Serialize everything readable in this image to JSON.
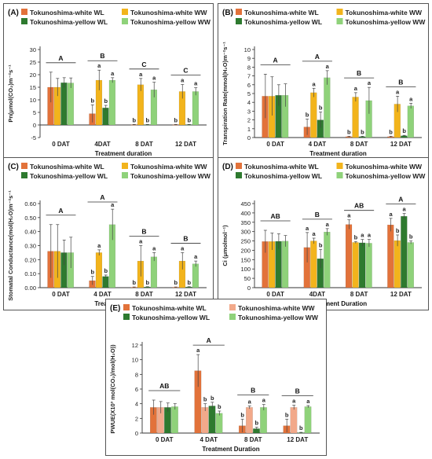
{
  "colors": {
    "white_wl": "#e2723a",
    "white_ww": "#f2b41c",
    "yellow_wl": "#2e7a2f",
    "yellow_ww": "#8fd27a",
    "white_ww_e": "#f2a98a",
    "axis": "#333333"
  },
  "chart_data": [
    {
      "panel_label": "(A)",
      "type": "bar",
      "legend": [
        "Tokunoshima-white WL",
        "Tokunoshima-white WW",
        "Tokunoshima-yellow  WL",
        "Tokunoshima-yellow  WW"
      ],
      "categories": [
        "0 DAT",
        "4DAT",
        "8 DAT",
        "12 DAT"
      ],
      "xlabel": "Treatment duration",
      "ylabel": "Pn(μmol(CO₂)m⁻²s⁻¹",
      "ylim": [
        -5,
        30
      ],
      "yticks": [
        "-5",
        "0",
        "5",
        "10",
        "15",
        "20",
        "25",
        "30"
      ],
      "series": [
        {
          "name": "Tokunoshima-white WL",
          "values": [
            15.0,
            4.5,
            0.1,
            0.1
          ],
          "errors": [
            6.0,
            3.5,
            0.1,
            0.1
          ],
          "letters": [
            "",
            "b",
            "b",
            "b"
          ]
        },
        {
          "name": "Tokunoshima-white WW",
          "values": [
            15.0,
            17.8,
            16.0,
            13.3
          ],
          "errors": [
            3.5,
            4.0,
            2.5,
            2.8
          ],
          "letters": [
            "",
            "a",
            "a",
            "a"
          ]
        },
        {
          "name": "Tokunoshima-yellow  WL",
          "values": [
            16.8,
            6.8,
            0.1,
            0.1
          ],
          "errors": [
            2.0,
            1.0,
            0.1,
            0.1
          ],
          "letters": [
            "",
            "b",
            "b",
            "b"
          ]
        },
        {
          "name": "Tokunoshima-yellow  WW",
          "values": [
            16.7,
            17.8,
            14.0,
            13.3
          ],
          "errors": [
            2.0,
            1.0,
            3.0,
            1.5
          ],
          "letters": [
            "",
            "a",
            "a",
            "a"
          ]
        }
      ],
      "groups": [
        "A",
        "B",
        "C",
        "C"
      ]
    },
    {
      "panel_label": "(B)",
      "type": "bar",
      "legend": [
        "Tokunoshima-white WL",
        "Tokunoshima-white WW",
        "Tokunoshima-yellow  WL",
        "Tokunoshima-yellow  WW"
      ],
      "categories": [
        "0 DAT",
        "4 DAT",
        "8 DAT",
        "12 DAT"
      ],
      "xlabel": "Treatment duration",
      "ylabel": "Transpiration Rate(mmol(H₂O)m⁻²s⁻¹",
      "ylim": [
        0,
        10
      ],
      "yticks": [
        "0",
        "1",
        "2",
        "3",
        "4",
        "5",
        "6",
        "7",
        "8",
        "9",
        "10"
      ],
      "series": [
        {
          "name": "Tokunoshima-white WL",
          "values": [
            4.7,
            1.2,
            0.1,
            0.1
          ],
          "errors": [
            2.5,
            0.9,
            0.05,
            0.05
          ],
          "letters": [
            "",
            "b",
            "b",
            "b"
          ]
        },
        {
          "name": "Tokunoshima-white WW",
          "values": [
            4.7,
            5.1,
            4.6,
            3.8
          ],
          "errors": [
            2.2,
            0.5,
            0.5,
            0.9
          ],
          "letters": [
            "",
            "a",
            "a",
            "a"
          ]
        },
        {
          "name": "Tokunoshima-yellow  WL",
          "values": [
            4.8,
            2.0,
            0.1,
            0.2
          ],
          "errors": [
            1.2,
            0.9,
            0.05,
            0.05
          ],
          "letters": [
            "",
            "b",
            "b",
            "b"
          ]
        },
        {
          "name": "Tokunoshima-yellow  WW",
          "values": [
            4.8,
            6.8,
            4.2,
            3.6
          ],
          "errors": [
            1.3,
            0.8,
            1.5,
            0.3
          ],
          "letters": [
            "",
            "a",
            "a",
            "a"
          ]
        }
      ],
      "groups": [
        "A",
        "A",
        "B",
        "B"
      ]
    },
    {
      "panel_label": "(C)",
      "type": "bar",
      "legend": [
        "Tokunoshima-white WL",
        "Tokunoshima-white WW",
        "Tokunoshima-yellow  WL",
        "Tokunoshima-yellow  WW"
      ],
      "categories": [
        "0 DAT",
        "4 DAT",
        "8 DAT",
        "12 DAT"
      ],
      "xlabel": "Treatment Duration",
      "ylabel": "Stomatal Conductance(mol(H₂O)m⁻²s⁻¹",
      "ylim": [
        0,
        0.6
      ],
      "yticks": [
        "0.00",
        "0.10",
        "0.20",
        "0.30",
        "0.40",
        "0.50",
        "0.60"
      ],
      "series": [
        {
          "name": "Tokunoshima-white WL",
          "values": [
            0.26,
            0.05,
            0.003,
            0.003
          ],
          "errors": [
            0.19,
            0.03,
            0.002,
            0.002
          ],
          "letters": [
            "",
            "b",
            "b",
            "b"
          ]
        },
        {
          "name": "Tokunoshima-white WW",
          "values": [
            0.26,
            0.25,
            0.19,
            0.19
          ],
          "errors": [
            0.19,
            0.02,
            0.11,
            0.06
          ],
          "letters": [
            "",
            "a",
            "a",
            "a"
          ]
        },
        {
          "name": "Tokunoshima-yellow  WL",
          "values": [
            0.25,
            0.08,
            0.005,
            0.005
          ],
          "errors": [
            0.09,
            0.01,
            0.002,
            0.002
          ],
          "letters": [
            "",
            "b",
            "b",
            "b"
          ]
        },
        {
          "name": "Tokunoshima-yellow  WW",
          "values": [
            0.25,
            0.45,
            0.22,
            0.17
          ],
          "errors": [
            0.11,
            0.11,
            0.03,
            0.02
          ],
          "letters": [
            "",
            "a",
            "a",
            "a"
          ]
        }
      ],
      "groups": [
        "A",
        "A",
        "B",
        "B"
      ]
    },
    {
      "panel_label": "(D)",
      "type": "bar",
      "legend": [
        "Tokunoshima-white WL",
        "Tokunoshima-white WW",
        "Tokunoshima-yellow WL",
        "Tokunoshima-yellow WW"
      ],
      "categories": [
        "0 DAT",
        "4DAT",
        "8 DAT",
        "12 DAT"
      ],
      "xlabel": "Treatment Duration",
      "ylabel": "Ci (μmolmol⁻¹)",
      "ylim": [
        0,
        450
      ],
      "yticks": [
        "0",
        "50",
        "100",
        "150",
        "200",
        "250",
        "300",
        "350",
        "400",
        "450"
      ],
      "series": [
        {
          "name": "Tokunoshima-white WL",
          "values": [
            247,
            215,
            338,
            336
          ],
          "errors": [
            60,
            80,
            25,
            35
          ],
          "letters": [
            "",
            "a",
            "a",
            "a"
          ]
        },
        {
          "name": "Tokunoshima-white WW",
          "values": [
            247,
            250,
            242,
            252
          ],
          "errors": [
            45,
            15,
            5,
            30
          ],
          "letters": [
            "",
            "a",
            "b",
            "b"
          ]
        },
        {
          "name": "Tokunoshima-yellow WL",
          "values": [
            248,
            155,
            240,
            382
          ],
          "errors": [
            40,
            50,
            18,
            15
          ],
          "letters": [
            "",
            "b",
            "a",
            "a"
          ]
        },
        {
          "name": "Tokunoshima-yellow WW",
          "values": [
            249,
            298,
            238,
            242
          ],
          "errors": [
            30,
            18,
            20,
            8
          ],
          "letters": [
            "",
            "a",
            "a",
            "b"
          ]
        }
      ],
      "groups": [
        "AB",
        "B",
        "AB",
        "A"
      ]
    },
    {
      "panel_label": "(E)",
      "type": "bar",
      "legend": [
        "Tokunoshima-white WL",
        "Tokunoshima-white WW",
        "Tokunoshima-yellow WL",
        "Tokunoshima-yellow WW"
      ],
      "categories": [
        "0 DAT",
        "4 DAT",
        "8 DAT",
        "12 DAT"
      ],
      "xlabel": "Treatment Duration",
      "ylabel": "PWUE(X10³ mol(CO₂)/mol(H₂O))",
      "ylim": [
        0,
        12
      ],
      "yticks": [
        "0",
        "2",
        "4",
        "6",
        "8",
        "10",
        "12"
      ],
      "series": [
        {
          "name": "Tokunoshima-white WL",
          "values": [
            3.5,
            8.5,
            1.0,
            1.0
          ],
          "errors": [
            1.0,
            2.2,
            0.9,
            0.9
          ],
          "letters": [
            "",
            "a",
            "b",
            "b"
          ]
        },
        {
          "name": "Tokunoshima-white WW",
          "values": [
            3.5,
            3.5,
            3.5,
            3.5
          ],
          "errors": [
            0.8,
            0.5,
            0.2,
            0.3
          ],
          "letters": [
            "",
            "b",
            "a",
            "a"
          ]
        },
        {
          "name": "Tokunoshima-yellow WL",
          "values": [
            3.5,
            3.7,
            0.6,
            0.05
          ],
          "errors": [
            0.6,
            0.5,
            0.2,
            0.05
          ],
          "letters": [
            "",
            "b",
            "b",
            "b"
          ]
        },
        {
          "name": "Tokunoshima-yellow WW",
          "values": [
            3.6,
            2.7,
            3.5,
            3.6
          ],
          "errors": [
            0.4,
            0.3,
            0.4,
            0.15
          ],
          "letters": [
            "",
            "b",
            "a",
            "a"
          ]
        }
      ],
      "groups": [
        "AB",
        "A",
        "B",
        "B"
      ]
    }
  ]
}
